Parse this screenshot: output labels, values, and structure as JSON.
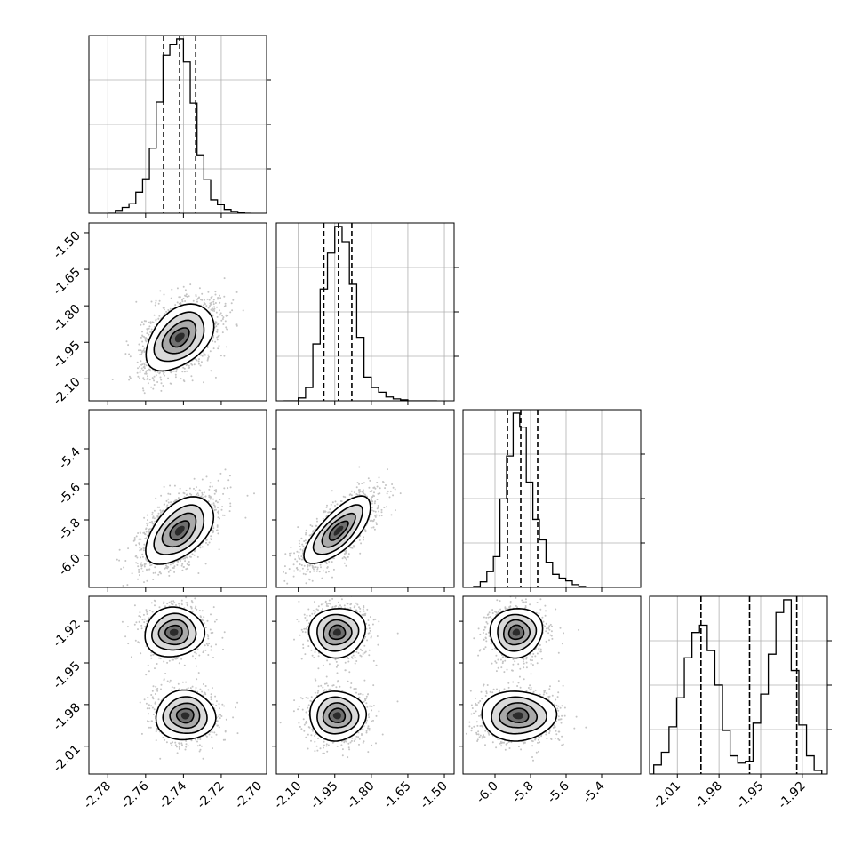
{
  "chart_data": {
    "type": "corner",
    "title": "",
    "parameters": [
      {
        "xlim": [
          -2.79,
          -2.696
        ],
        "ticks": [
          "-2.78",
          "-2.76",
          "-2.74",
          "-2.72",
          "-2.70"
        ],
        "tick_values": [
          -2.78,
          -2.76,
          -2.74,
          -2.72,
          -2.7
        ]
      },
      {
        "xlim": [
          -2.19,
          -1.46
        ],
        "ticks": [
          "-2.10",
          "-1.95",
          "-1.80",
          "-1.65",
          "-1.50"
        ],
        "tick_values": [
          -2.1,
          -1.95,
          -1.8,
          -1.65,
          -1.5
        ]
      },
      {
        "xlim": [
          -6.18,
          -5.18
        ],
        "ticks": [
          "-6.0",
          "-5.8",
          "-5.6",
          "-5.4"
        ],
        "tick_values": [
          -6.0,
          -5.8,
          -5.6,
          -5.4
        ]
      },
      {
        "xlim": [
          -2.03,
          -1.902
        ],
        "ticks": [
          "-2.01",
          "-1.98",
          "-1.95",
          "-1.92"
        ],
        "tick_values": [
          -2.01,
          -1.98,
          -1.95,
          -1.92
        ]
      }
    ],
    "row_ylims": [
      null,
      [
        -2.19,
        -1.46
      ],
      [
        -6.18,
        -5.18
      ],
      [
        -2.03,
        -1.902
      ]
    ],
    "histograms": [
      {
        "bin_edges_lim": [
          -2.776,
          -2.704
        ],
        "counts": [
          0.3,
          0.6,
          1.0,
          2.2,
          3.6,
          6.8,
          11.6,
          16.5,
          17.6,
          18.2,
          15.8,
          11.5,
          6.1,
          3.5,
          1.4,
          0.9,
          0.4,
          0.2,
          0.1,
          0.0
        ],
        "quantiles": [
          -2.7505,
          -2.742,
          -2.7335
        ]
      },
      {
        "bin_edges_lim": [
          -2.13,
          -1.53
        ],
        "counts": [
          0.0,
          0.3,
          1.4,
          6.0,
          11.8,
          15.6,
          18.4,
          16.8,
          12.3,
          6.7,
          2.5,
          1.4,
          0.9,
          0.4,
          0.2,
          0.1,
          0.0,
          0.0,
          0.0,
          0.0
        ],
        "quantiles": [
          -1.995,
          -1.935,
          -1.88
        ]
      },
      {
        "bin_edges_lim": [
          -6.12,
          -5.38
        ],
        "counts": [
          0.1,
          0.6,
          1.7,
          3.3,
          9.5,
          14.1,
          18.7,
          17.2,
          11.3,
          7.3,
          5.1,
          2.7,
          1.4,
          1.0,
          0.7,
          0.3,
          0.1,
          0.0,
          0.0,
          0.0
        ],
        "quantiles": [
          -5.93,
          -5.855,
          -5.76
        ]
      },
      {
        "bin_edges_lim": [
          -2.027,
          -1.906
        ],
        "counts": [
          0.5,
          1.2,
          2.6,
          4.2,
          6.4,
          7.8,
          8.2,
          6.8,
          4.9,
          2.4,
          1.0,
          0.6,
          0.7,
          2.8,
          4.4,
          6.6,
          8.9,
          9.6,
          5.7,
          2.7,
          1.0,
          0.2
        ],
        "quantiles": [
          -1.993,
          -1.958,
          -1.924
        ]
      }
    ],
    "scatter_panels": [
      {
        "row": 1,
        "col": 0,
        "modes": [
          {
            "mx": -2.742,
            "my": -1.93,
            "sx": 0.0085,
            "sy": 0.065,
            "rho": 0.42,
            "w": 1.0
          }
        ]
      },
      {
        "row": 2,
        "col": 0,
        "modes": [
          {
            "mx": -2.742,
            "my": -5.86,
            "sx": 0.0085,
            "sy": 0.09,
            "rho": 0.5,
            "w": 1.0
          }
        ]
      },
      {
        "row": 2,
        "col": 1,
        "modes": [
          {
            "mx": -1.935,
            "my": -5.86,
            "sx": 0.065,
            "sy": 0.09,
            "rho": 0.72,
            "w": 1.0
          }
        ]
      },
      {
        "row": 3,
        "col": 0,
        "modes": [
          {
            "mx": -2.745,
            "my": -1.928,
            "sx": 0.0075,
            "sy": 0.0085,
            "rho": 0.05,
            "w": 0.5
          },
          {
            "mx": -2.739,
            "my": -1.988,
            "sx": 0.0075,
            "sy": 0.0085,
            "rho": 0.0,
            "w": 0.5
          }
        ]
      },
      {
        "row": 3,
        "col": 1,
        "modes": [
          {
            "mx": -1.94,
            "my": -1.928,
            "sx": 0.055,
            "sy": 0.0085,
            "rho": 0.05,
            "w": 0.5
          },
          {
            "mx": -1.94,
            "my": -1.988,
            "sx": 0.055,
            "sy": 0.0085,
            "rho": 0.0,
            "w": 0.5
          }
        ]
      },
      {
        "row": 3,
        "col": 2,
        "modes": [
          {
            "mx": -5.88,
            "my": -1.928,
            "sx": 0.07,
            "sy": 0.0085,
            "rho": 0.05,
            "w": 0.5
          },
          {
            "mx": -5.87,
            "my": -1.988,
            "sx": 0.1,
            "sy": 0.0085,
            "rho": 0.0,
            "w": 0.5
          }
        ]
      }
    ],
    "grid": true,
    "quantile_style": "dashed",
    "point_color": "#555555",
    "contour_color": "#000000"
  }
}
